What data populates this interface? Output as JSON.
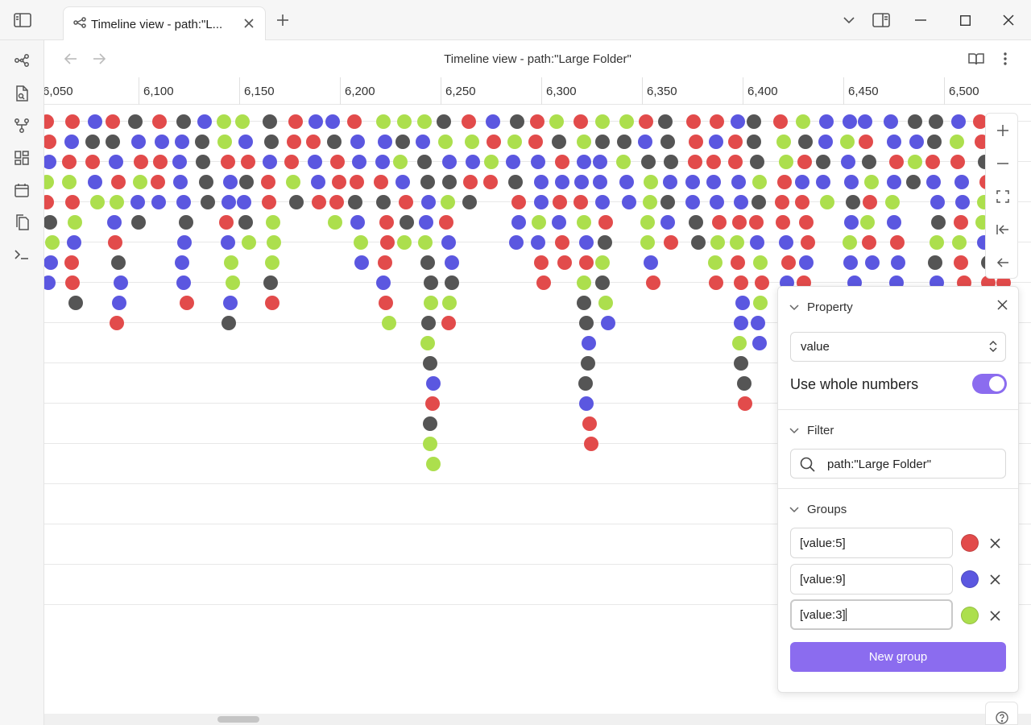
{
  "window": {
    "tab_title": "Timeline view - path:\"L...",
    "buttons": [
      "sidebar-toggle",
      "new-tab",
      "tab-list",
      "right-sidebar",
      "minimize",
      "maximize",
      "close"
    ]
  },
  "ribbon": {
    "icons": [
      "graph-view-icon",
      "new-note-icon",
      "canvas-icon",
      "dashboard-icon",
      "calendar-icon",
      "copy-icon",
      "terminal-icon"
    ]
  },
  "view": {
    "title": "Timeline view - path:\"Large Folder\""
  },
  "timeline": {
    "ticks": [
      "6,050",
      "6,100",
      "6,150",
      "6,200",
      "6,250",
      "6,300",
      "6,350",
      "6,400",
      "6,450",
      "6,500"
    ],
    "colors": {
      "value5": "#e24b4b",
      "value9": "#5b57e0",
      "value3": "#acdf4d",
      "other": "#555555"
    }
  },
  "zoom_controls": [
    "zoom-in",
    "zoom-out",
    "fit",
    "jump-start",
    "back"
  ],
  "panel": {
    "property_label": "Property",
    "property_value": "value",
    "whole_numbers_label": "Use whole numbers",
    "whole_numbers_on": true,
    "filter_label": "Filter",
    "filter_value": "path:\"Large Folder\"",
    "groups_label": "Groups",
    "groups": [
      {
        "query": "[value:5]",
        "color": "#e24b4b"
      },
      {
        "query": "[value:9]",
        "color": "#5b57e0"
      },
      {
        "query": "[value:3]",
        "color": "#acdf4d"
      }
    ],
    "new_group_label": "New group"
  }
}
